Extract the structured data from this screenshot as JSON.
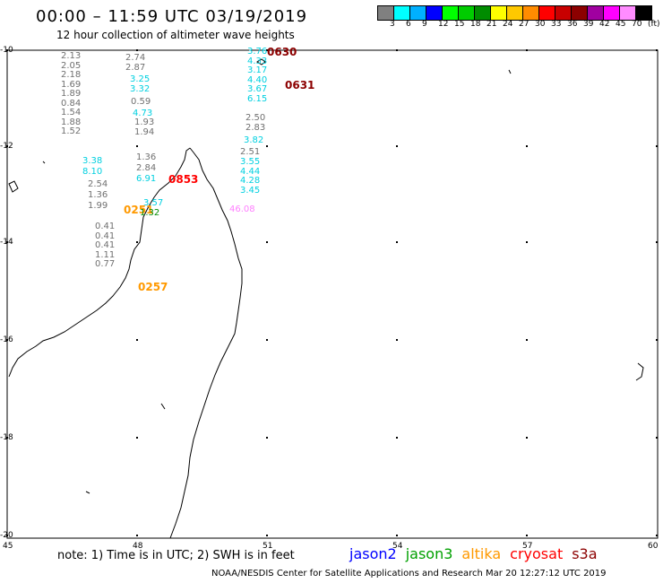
{
  "title": "00:00 – 11:59 UTC 03/19/2019",
  "subtitle": "12 hour collection of altimeter wave heights",
  "scale": {
    "colors": [
      "#808080",
      "#00ffff",
      "#00b0ff",
      "#0000ff",
      "#00ff00",
      "#00cc00",
      "#008c00",
      "#ffff00",
      "#ffc800",
      "#ff8c00",
      "#ff0000",
      "#c80000",
      "#8c0000",
      "#a000a0",
      "#ff00ff",
      "#ff8cff",
      "#000000"
    ],
    "labels": [
      "3",
      "6",
      "9",
      "12",
      "15",
      "18",
      "21",
      "24",
      "27",
      "30",
      "33",
      "36",
      "39",
      "42",
      "45",
      "70",
      "(ft)"
    ]
  },
  "axes": {
    "lat_labels": [
      "-10",
      "-12",
      "-14",
      "-16",
      "-18",
      "-20"
    ],
    "lon_labels": [
      "45",
      "48",
      "51",
      "54",
      "57",
      "60"
    ]
  },
  "tracks": [
    {
      "color": "#707070",
      "values": [
        "2.13",
        "2.05",
        "2.18",
        "1.69",
        "1.89",
        "0.84",
        "1.54",
        "1.88",
        "1.52"
      ]
    },
    {
      "color": "#707070",
      "values": [
        "2.74",
        "2.87"
      ]
    },
    {
      "color": "#00d0e0",
      "values": [
        "3.25",
        "3.32"
      ]
    },
    {
      "color": "#707070",
      "values": [
        "0.59"
      ]
    },
    {
      "color": "#00d0e0",
      "values": [
        "4.73"
      ]
    },
    {
      "color": "#707070",
      "values": [
        "1.93",
        "1.94"
      ]
    },
    {
      "color": "#00d0e0",
      "values": [
        "3.38",
        "8.10"
      ]
    },
    {
      "color": "#707070",
      "values": [
        "2.54",
        "1.36",
        "1.99"
      ]
    },
    {
      "color": "#707070",
      "values": [
        "1.36",
        "2.84"
      ]
    },
    {
      "color": "#00d0e0",
      "values": [
        "6.91"
      ]
    },
    {
      "color": "#00d0e0",
      "values": [
        "3.57"
      ]
    },
    {
      "color": "#707070",
      "values": [
        "0.41",
        "0.41",
        "0.41",
        "1.11",
        "0.77"
      ]
    },
    {
      "color": "#00d0e0",
      "values": [
        "3.76",
        "4.33",
        "3.17",
        "4.40",
        "3.67",
        "6.15"
      ]
    },
    {
      "color": "#707070",
      "values": [
        "2.50",
        "2.83"
      ]
    },
    {
      "color": "#00d0e0",
      "values": [
        "3.82"
      ]
    },
    {
      "color": "#707070",
      "values": [
        "2.51"
      ]
    },
    {
      "color": "#00d0e0",
      "values": [
        "3.55",
        "4.44",
        "4.28",
        "3.45"
      ]
    },
    {
      "color": "#ff80ff",
      "values": [
        "46.08"
      ]
    }
  ],
  "times": [
    {
      "label": "0630",
      "color": "#8c0000"
    },
    {
      "label": "0631",
      "color": "#8c0000"
    },
    {
      "label": "0853",
      "color": "#ff0000"
    },
    {
      "label": "0251",
      "color": "#ff9900"
    },
    {
      "label": "0257",
      "color": "#ff9900"
    },
    {
      "label": "1.32",
      "color": "#008c00"
    }
  ],
  "note": "note: 1) Time is in UTC; 2) SWH is in feet",
  "legend": [
    {
      "label": "jason2",
      "color": "#0000ff"
    },
    {
      "label": "jason3",
      "color": "#00a000"
    },
    {
      "label": "altika",
      "color": "#ff9900"
    },
    {
      "label": "cryosat",
      "color": "#ff0000"
    },
    {
      "label": "s3a",
      "color": "#8c0000"
    }
  ],
  "footer": "NOAA/NESDIS Center for Satellite Applications and Research   Mar 20 12:27:12 UTC 2019"
}
